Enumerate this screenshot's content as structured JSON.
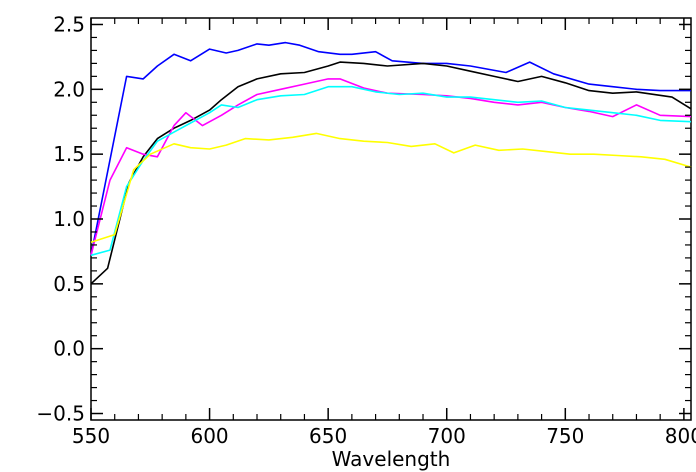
{
  "chart_data": {
    "type": "line",
    "title": "",
    "xlabel": "Wavelength",
    "ylabel": "",
    "xlim": [
      550,
      803
    ],
    "ylim": [
      -0.55,
      2.55
    ],
    "xticks": [
      550,
      600,
      650,
      700,
      750,
      800
    ],
    "xtick_labels": [
      "550",
      "600",
      "650",
      "700",
      "750",
      "800"
    ],
    "yticks": [
      -0.5,
      0.0,
      0.5,
      1.0,
      1.5,
      2.0,
      2.5
    ],
    "ytick_labels": [
      "−0.5",
      "0.0",
      "0.5",
      "1.0",
      "1.5",
      "2.0",
      "2.5"
    ],
    "grid": false,
    "legend": "none",
    "series": [
      {
        "color": "#0000ff",
        "x": [
          550,
          565,
          572,
          578,
          585,
          592,
          600,
          607,
          612,
          620,
          625,
          632,
          638,
          646,
          655,
          660,
          670,
          677,
          690,
          700,
          710,
          725,
          735,
          745,
          760,
          770,
          780,
          790,
          803
        ],
        "y": [
          0.72,
          2.1,
          2.08,
          2.18,
          2.27,
          2.22,
          2.31,
          2.28,
          2.3,
          2.35,
          2.34,
          2.36,
          2.34,
          2.29,
          2.27,
          2.27,
          2.29,
          2.22,
          2.2,
          2.2,
          2.18,
          2.13,
          2.21,
          2.12,
          2.04,
          2.02,
          2.0,
          1.99,
          1.99
        ]
      },
      {
        "color": "#000000",
        "x": [
          550,
          557,
          566,
          572,
          578,
          585,
          592,
          600,
          605,
          612,
          620,
          630,
          640,
          650,
          655,
          665,
          675,
          690,
          700,
          710,
          720,
          730,
          740,
          750,
          760,
          770,
          780,
          795,
          803
        ],
        "y": [
          0.5,
          0.62,
          1.28,
          1.48,
          1.62,
          1.7,
          1.76,
          1.84,
          1.92,
          2.02,
          2.08,
          2.12,
          2.13,
          2.18,
          2.21,
          2.2,
          2.18,
          2.2,
          2.18,
          2.14,
          2.1,
          2.06,
          2.1,
          2.05,
          1.99,
          1.97,
          1.98,
          1.94,
          1.85
        ]
      },
      {
        "color": "#ff00ff",
        "x": [
          550,
          558,
          565,
          572,
          578,
          585,
          590,
          597,
          605,
          612,
          620,
          630,
          640,
          650,
          655,
          665,
          675,
          690,
          700,
          710,
          720,
          730,
          740,
          750,
          760,
          770,
          780,
          790,
          803
        ],
        "y": [
          0.72,
          1.3,
          1.55,
          1.5,
          1.48,
          1.72,
          1.82,
          1.72,
          1.8,
          1.88,
          1.96,
          2.0,
          2.04,
          2.08,
          2.08,
          2.01,
          1.97,
          1.96,
          1.95,
          1.93,
          1.9,
          1.88,
          1.9,
          1.86,
          1.83,
          1.79,
          1.88,
          1.8,
          1.79
        ]
      },
      {
        "color": "#00ffff",
        "x": [
          550,
          558,
          565,
          572,
          578,
          585,
          592,
          600,
          605,
          612,
          620,
          630,
          640,
          650,
          660,
          670,
          680,
          690,
          700,
          710,
          720,
          730,
          740,
          750,
          760,
          770,
          780,
          790,
          803
        ],
        "y": [
          0.72,
          0.76,
          1.25,
          1.45,
          1.6,
          1.67,
          1.74,
          1.82,
          1.88,
          1.86,
          1.92,
          1.95,
          1.96,
          2.02,
          2.02,
          1.98,
          1.96,
          1.97,
          1.94,
          1.94,
          1.92,
          1.9,
          1.91,
          1.86,
          1.84,
          1.82,
          1.8,
          1.76,
          1.75
        ]
      },
      {
        "color": "#ffff00",
        "x": [
          550,
          560,
          568,
          575,
          585,
          592,
          600,
          607,
          615,
          625,
          635,
          645,
          655,
          665,
          675,
          685,
          695,
          703,
          712,
          722,
          732,
          742,
          752,
          762,
          772,
          782,
          792,
          803
        ],
        "y": [
          0.82,
          0.88,
          1.38,
          1.5,
          1.58,
          1.55,
          1.54,
          1.57,
          1.62,
          1.61,
          1.63,
          1.66,
          1.62,
          1.6,
          1.59,
          1.56,
          1.58,
          1.51,
          1.57,
          1.53,
          1.54,
          1.52,
          1.5,
          1.5,
          1.49,
          1.48,
          1.46,
          1.4
        ]
      }
    ]
  }
}
